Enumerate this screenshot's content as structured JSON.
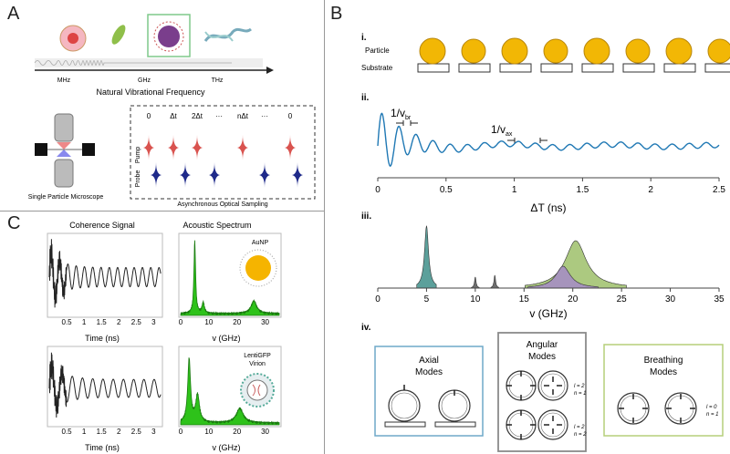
{
  "panelA": {
    "letter": "A",
    "axis_ticks": [
      "MHz",
      "GHz",
      "THz"
    ],
    "axis_title": "Natural Vibrational Frequency",
    "microscope_label": "Single Particle Microscope",
    "sampling_title": "Asynchronous Optical Sampling",
    "delays": [
      "0",
      "Δt",
      "2Δt",
      "···",
      "nΔt",
      "···",
      "0"
    ],
    "pump_label": "Pump",
    "probe_label": "Probe",
    "pump_color": "#d9534f",
    "probe_color": "#1f2a8a"
  },
  "panelB": {
    "letter": "B",
    "i": {
      "label": "i.",
      "particle_label": "Particle",
      "substrate_label": "Substrate",
      "particle_color": "#f2b705"
    },
    "ii": {
      "label": "ii.",
      "annot_br": "1/v",
      "annot_br_sub": "br",
      "annot_ax": "1/v",
      "annot_ax_sub": "ax",
      "xlabel": "ΔT  (ns)",
      "xticks": [
        "0",
        "0.5",
        "1",
        "1.5",
        "2",
        "2.5"
      ],
      "line_color_early": "#3a7a55",
      "line_color_late": "#1f78b4"
    },
    "iii": {
      "label": "iii.",
      "xlabel": "v (GHz)",
      "xticks": [
        "0",
        "5",
        "10",
        "15",
        "20",
        "25",
        "30",
        "35"
      ],
      "peak_colors": {
        "p5": "#3f8f8a",
        "p19": "#a48bc7",
        "p20": "#9dc06a"
      }
    },
    "iv": {
      "label": "iv.",
      "axial_title": "Axial\nModes",
      "angular_title": "Angular\nModes",
      "breathing_title": "Breathing\nModes",
      "angular_q1": "l = 2\nn = 1",
      "angular_q2": "l = 2\nn = 2",
      "breathing_q": "l = 0\nn = 1",
      "axial_border": "#6fa8c9",
      "angular_border": "#8a8a8a",
      "breathing_border": "#b5cf7a"
    }
  },
  "panelC": {
    "letter": "C",
    "coherence_title": "Coherence Signal",
    "spectrum_title": "Acoustic Spectrum",
    "time_ticks": [
      "0.5",
      "1",
      "1.5",
      "2",
      "2.5",
      "3"
    ],
    "time_label": "Time (ns)",
    "freq_ticks": [
      "0",
      "10",
      "20",
      "30"
    ],
    "freq_label": "v (GHz)",
    "particle1": "AuNP",
    "particle2a": "LentiGFP",
    "particle2b": "Virion",
    "spectrum_color": "#2ec21a"
  },
  "chart_data": [
    {
      "type": "line",
      "panel": "B.ii",
      "xlabel": "ΔT  (ns)",
      "xlim": [
        0,
        2.5
      ],
      "series": [
        {
          "x": [
            0,
            0.1,
            0.2,
            0.3,
            0.5,
            0.7,
            1.0,
            1.5,
            2.0,
            2.5
          ],
          "values": [
            1.0,
            0.7,
            0.5,
            0.3,
            0.12,
            0.08,
            0.06,
            0.05,
            0.04,
            0.03
          ]
        }
      ]
    },
    {
      "type": "area",
      "panel": "B.iii",
      "xlabel": "v (GHz)",
      "xlim": [
        0,
        35
      ],
      "series": [
        {
          "x": [
            5
          ],
          "values": [
            1.0
          ]
        },
        {
          "x": [
            10,
            12
          ],
          "values": [
            0.12,
            0.14
          ]
        },
        {
          "x": [
            19
          ],
          "values": [
            0.3
          ]
        },
        {
          "x": [
            20.3
          ],
          "values": [
            0.7
          ]
        }
      ]
    }
  ]
}
